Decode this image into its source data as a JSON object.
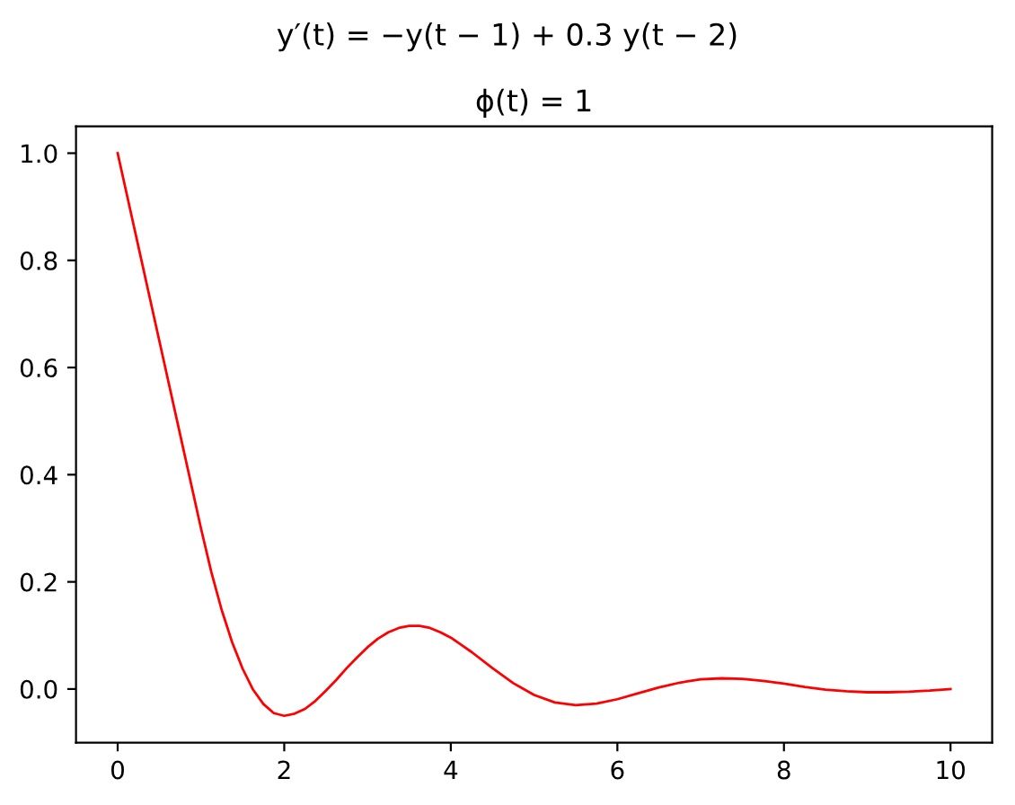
{
  "chart_data": {
    "type": "line",
    "title": "y′(t) = −y(t − 1) + 0.3 y(t − 2)",
    "subtitle": "ϕ(t) = 1",
    "series": [
      {
        "color": "#ff0000",
        "x": [
          0,
          0.25,
          0.5,
          0.75,
          1.0,
          1.125,
          1.25,
          1.375,
          1.5,
          1.625,
          1.75,
          1.875,
          2.0,
          2.125,
          2.25,
          2.375,
          2.5,
          2.625,
          2.75,
          2.875,
          3.0,
          3.125,
          3.25,
          3.375,
          3.5,
          3.625,
          3.75,
          3.875,
          4.0,
          4.25,
          4.5,
          4.75,
          5.0,
          5.25,
          5.5,
          5.75,
          6.0,
          6.25,
          6.5,
          6.75,
          7.0,
          7.25,
          7.5,
          7.75,
          8.0,
          8.25,
          8.5,
          8.75,
          9.0,
          9.25,
          9.5,
          9.75,
          10.0
        ],
        "values": [
          1.0,
          0.825,
          0.65,
          0.475,
          0.3,
          0.218,
          0.147,
          0.087,
          0.038,
          -0.001,
          -0.028,
          -0.045,
          -0.05,
          -0.046,
          -0.037,
          -0.022,
          -0.003,
          0.017,
          0.039,
          0.059,
          0.078,
          0.094,
          0.106,
          0.114,
          0.118,
          0.118,
          0.114,
          0.106,
          0.096,
          0.069,
          0.039,
          0.011,
          -0.011,
          -0.025,
          -0.03,
          -0.027,
          -0.019,
          -0.008,
          0.003,
          0.012,
          0.018,
          0.02,
          0.019,
          0.015,
          0.01,
          0.004,
          -0.001,
          -0.004,
          -0.006,
          -0.006,
          -0.005,
          -0.003,
          0.0
        ]
      }
    ],
    "xlim": [
      -0.5,
      10.5
    ],
    "ylim": [
      -0.1,
      1.05
    ],
    "xticks": [
      0,
      2,
      4,
      6,
      8,
      10
    ],
    "yticks": [
      {
        "value": 0,
        "label": "0.0"
      },
      0.2,
      0.4,
      0.6,
      0.8,
      {
        "value": 1,
        "label": "1.0"
      }
    ]
  }
}
